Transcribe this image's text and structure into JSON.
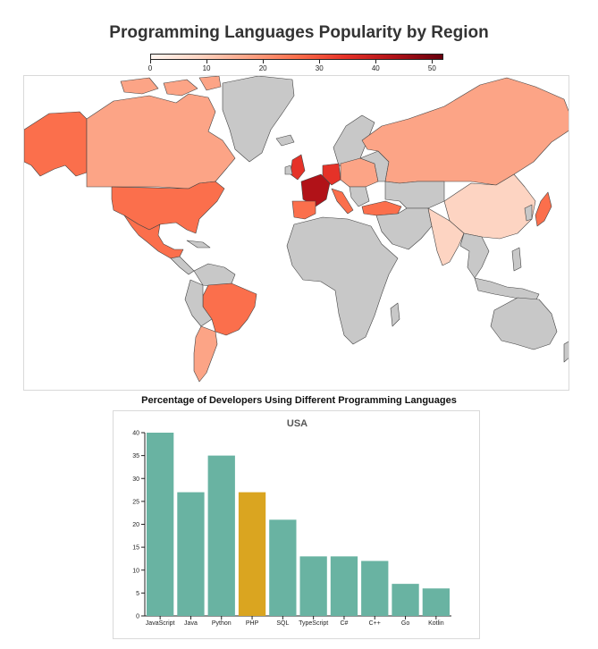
{
  "page": {
    "title": "Programming Languages Popularity by Region",
    "subtitle": "Percentage of Developers Using Different Programming Languages"
  },
  "legend": {
    "ticks": [
      "0",
      "10",
      "20",
      "30",
      "40",
      "50"
    ],
    "domain": [
      0,
      52
    ],
    "colors": [
      "#fff5f0",
      "#fdd4c2",
      "#fca486",
      "#fb6f4c",
      "#e53228",
      "#b11218",
      "#67000d"
    ]
  },
  "map": {
    "no_data_color": "#c8c8c8",
    "border_color": "#444444"
  },
  "chart_data": {
    "type": "bar",
    "title": "USA",
    "categories": [
      "JavaScript",
      "Java",
      "Python",
      "PHP",
      "SQL",
      "TypeScript",
      "C#",
      "C++",
      "Go",
      "Kotlin"
    ],
    "values": [
      40,
      27,
      35,
      27,
      21,
      13,
      13,
      12,
      7,
      6
    ],
    "highlight_index": 3,
    "bar_color": "#69b3a2",
    "highlight_color": "#daa520",
    "ylim": [
      0,
      40
    ],
    "yticks": [
      0,
      5,
      10,
      15,
      20,
      25,
      30,
      35,
      40
    ],
    "xlabel": "",
    "ylabel": "",
    "grid": false
  }
}
